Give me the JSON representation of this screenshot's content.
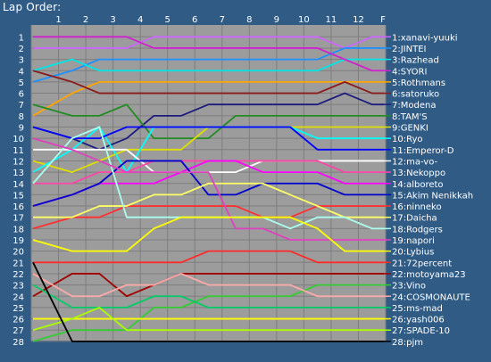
{
  "window_title": "Lap Order:",
  "chart_data": {
    "type": "line",
    "title": "Lap Order:",
    "x_tick_labels": [
      "1",
      "2",
      "3",
      "4",
      "5",
      "6",
      "7",
      "8",
      "9",
      "10",
      "11",
      "12",
      "F"
    ],
    "y_tick_labels": [
      "1",
      "2",
      "3",
      "4",
      "5",
      "6",
      "7",
      "8",
      "9",
      "10",
      "11",
      "12",
      "13",
      "14",
      "15",
      "16",
      "17",
      "18",
      "19",
      "20",
      "21",
      "22",
      "23",
      "24",
      "25",
      "26",
      "27",
      "28"
    ],
    "xlim": [
      0,
      13
    ],
    "ylim": [
      1,
      28
    ],
    "grid": true,
    "legend_placement": "right",
    "background": "#9c9c9c",
    "grid_color": "#7e7e7e",
    "series": [
      {
        "name": "1:xanavi-yuuki",
        "color": "#cc66ff",
        "positions": [
          2,
          2,
          2,
          2,
          1,
          1,
          1,
          1,
          1,
          1,
          1,
          2,
          1
        ]
      },
      {
        "name": "2:JINTEI",
        "color": "#1e90ff",
        "positions": [
          5,
          4,
          3,
          3,
          3,
          3,
          3,
          3,
          3,
          3,
          3,
          2,
          2
        ]
      },
      {
        "name": "3:Razhead",
        "color": "#00e5e5",
        "positions": [
          4,
          3,
          4,
          4,
          4,
          4,
          4,
          4,
          4,
          4,
          4,
          3,
          3
        ]
      },
      {
        "name": "4:SYORI",
        "color": "#d020d0",
        "positions": [
          1,
          1,
          1,
          1,
          2,
          2,
          2,
          2,
          2,
          2,
          2,
          3,
          4
        ]
      },
      {
        "name": "5:Rothmans",
        "color": "#ffa500",
        "positions": [
          8,
          6,
          5,
          5,
          5,
          5,
          5,
          5,
          5,
          5,
          5,
          5,
          5
        ]
      },
      {
        "name": "6:satoruko",
        "color": "#8b1a1a",
        "positions": [
          4,
          5,
          6,
          6,
          6,
          6,
          6,
          6,
          6,
          6,
          6,
          5,
          6
        ]
      },
      {
        "name": "7:Modena",
        "color": "#1c1c7c",
        "positions": [
          9,
          10,
          11,
          10,
          8,
          8,
          7,
          7,
          7,
          7,
          7,
          6,
          7
        ]
      },
      {
        "name": "8:TAM'S",
        "color": "#228b22",
        "positions": [
          7,
          8,
          8,
          7,
          10,
          10,
          10,
          8,
          8,
          8,
          8,
          8,
          8
        ]
      },
      {
        "name": "9:GENKI",
        "color": "#dede00",
        "positions": [
          12,
          13,
          12,
          11,
          11,
          11,
          9,
          9,
          9,
          9,
          9,
          9,
          9
        ]
      },
      {
        "name": "10:Ryo",
        "color": "#00ffff",
        "positions": [
          13,
          11,
          9,
          13,
          9,
          9,
          9,
          9,
          9,
          9,
          10,
          10,
          10
        ]
      },
      {
        "name": "11:Emperor-D",
        "color": "#0000ff",
        "positions": [
          9,
          10,
          10,
          9,
          9,
          9,
          9,
          9,
          9,
          9,
          11,
          11,
          11
        ]
      },
      {
        "name": "12:ma-vo-",
        "color": "#ffffff",
        "positions": [
          11,
          11,
          11,
          11,
          13,
          13,
          13,
          13,
          12,
          12,
          12,
          12,
          12
        ]
      },
      {
        "name": "13:Nekoppo",
        "color": "#ff44aa",
        "positions": [
          14,
          14,
          13,
          13,
          12,
          12,
          12,
          12,
          12,
          12,
          12,
          13,
          13
        ]
      },
      {
        "name": "14:alboreto",
        "color": "#ff00ff",
        "positions": [
          16,
          15,
          14,
          14,
          14,
          13,
          12,
          12,
          13,
          13,
          13,
          14,
          14
        ]
      },
      {
        "name": "15:Akim Nenikkah",
        "color": "#0000cc",
        "positions": [
          16,
          15,
          14,
          12,
          12,
          12,
          15,
          15,
          14,
          14,
          14,
          15,
          15
        ]
      },
      {
        "name": "16:ninneko",
        "color": "#ff3030",
        "positions": [
          18,
          17,
          17,
          16,
          16,
          16,
          16,
          16,
          17,
          17,
          16,
          16,
          16
        ]
      },
      {
        "name": "17:Daicha",
        "color": "#ffff66",
        "positions": [
          17,
          17,
          16,
          16,
          15,
          15,
          14,
          14,
          14,
          15,
          16,
          17,
          17
        ]
      },
      {
        "name": "18:Rodgers",
        "color": "#aaffee",
        "positions": [
          14,
          10,
          9,
          17,
          17,
          17,
          17,
          17,
          17,
          18,
          17,
          17,
          18
        ]
      },
      {
        "name": "19:napori",
        "color": "#e040c0",
        "positions": [
          10,
          11,
          12,
          13,
          13,
          13,
          13,
          18,
          18,
          19,
          19,
          19,
          19
        ]
      },
      {
        "name": "20:Lybius",
        "color": "#ffff00",
        "positions": [
          19,
          20,
          20,
          20,
          18,
          17,
          17,
          17,
          17,
          17,
          18,
          20,
          20
        ]
      },
      {
        "name": "21:72percent",
        "color": "#ff2a2a",
        "positions": [
          21,
          21,
          21,
          21,
          21,
          21,
          20,
          20,
          20,
          20,
          21,
          21,
          21
        ]
      },
      {
        "name": "22:motoyama23",
        "color": "#a00000",
        "positions": [
          24,
          22,
          22,
          24,
          23,
          22,
          22,
          22,
          22,
          22,
          22,
          22,
          22
        ]
      },
      {
        "name": "23:Vino",
        "color": "#33cc33",
        "positions": [
          28,
          27,
          27,
          27,
          25,
          25,
          24,
          24,
          24,
          24,
          23,
          23,
          23
        ]
      },
      {
        "name": "24:COSMONAUTE",
        "color": "#ffaaaa",
        "positions": [
          22,
          24,
          24,
          23,
          23,
          22,
          23,
          23,
          23,
          23,
          24,
          24,
          24
        ]
      },
      {
        "name": "25:ms-mad",
        "color": "#00cc66",
        "positions": [
          23,
          25,
          25,
          25,
          24,
          24,
          25,
          25,
          25,
          25,
          25,
          25,
          25
        ]
      },
      {
        "name": "26:yash006",
        "color": "#ffff00",
        "positions": [
          26,
          26,
          26,
          26,
          26,
          26,
          26,
          26,
          26,
          26,
          26,
          26,
          26
        ]
      },
      {
        "name": "27:SPADE-10",
        "color": "#aaff00",
        "positions": [
          27,
          26,
          25,
          27,
          27,
          27,
          27,
          27,
          27,
          27,
          27,
          27,
          27
        ]
      },
      {
        "name": "28:pjm",
        "color": "#000000",
        "positions": [
          21,
          28,
          28,
          28,
          28,
          28,
          28,
          28,
          28,
          28,
          28,
          28,
          28
        ]
      }
    ]
  }
}
